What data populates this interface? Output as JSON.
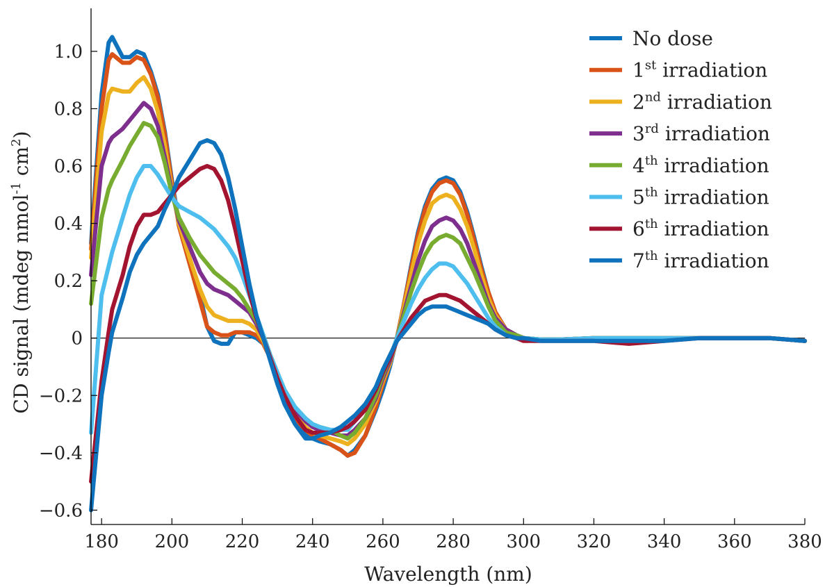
{
  "chart_data": {
    "type": "line",
    "title": "",
    "xlabel": "Wavelength (nm)",
    "ylabel": "CD signal (mdeg nmol-1 cm2)",
    "ylabel_parts": {
      "main": "CD signal (mdeg nmol",
      "sup1": "-1",
      "mid": " cm",
      "sup2": "2",
      "end": ")"
    },
    "xlim": [
      177,
      380
    ],
    "ylim": [
      -0.65,
      1.15
    ],
    "x_ticks": [
      180,
      200,
      220,
      240,
      260,
      280,
      300,
      320,
      340,
      360,
      380
    ],
    "x_tick_labels": [
      "180",
      "200",
      "220",
      "240",
      "260",
      "280",
      "300",
      "320",
      "340",
      "360",
      "380"
    ],
    "y_ticks": [
      -0.6,
      -0.4,
      -0.2,
      0,
      0.2,
      0.4,
      0.6,
      0.8,
      1.0
    ],
    "y_tick_labels": [
      "−0.6",
      "−0.4",
      "−0.2",
      "0",
      "0.2",
      "0.4",
      "0.6",
      "0.8",
      "1.0"
    ],
    "grid": false,
    "zero_line": true,
    "legend_position": "top-right",
    "x": [
      177,
      180,
      182,
      183,
      186,
      188,
      190,
      192,
      194,
      196,
      198,
      200,
      202,
      205,
      208,
      210,
      212,
      214,
      216,
      218,
      220,
      222,
      224,
      226,
      228,
      230,
      232,
      235,
      238,
      240,
      242,
      245,
      248,
      250,
      252,
      255,
      258,
      260,
      262,
      264,
      266,
      268,
      270,
      272,
      274,
      276,
      278,
      280,
      282,
      284,
      286,
      288,
      290,
      292,
      295,
      298,
      300,
      305,
      310,
      320,
      330,
      340,
      350,
      360,
      370,
      380
    ],
    "series": [
      {
        "name": "No dose",
        "label_main": "No dose",
        "label_sup": "",
        "label_rest": "",
        "color": "#0e72bd",
        "values": [
          0.33,
          0.85,
          1.03,
          1.05,
          0.98,
          0.98,
          1.0,
          0.99,
          0.93,
          0.85,
          0.72,
          0.55,
          0.4,
          0.27,
          0.15,
          0.04,
          -0.01,
          -0.02,
          -0.02,
          0.02,
          0.02,
          0.01,
          0.0,
          -0.02,
          -0.07,
          -0.14,
          -0.21,
          -0.28,
          -0.33,
          -0.35,
          -0.36,
          -0.37,
          -0.39,
          -0.41,
          -0.39,
          -0.34,
          -0.25,
          -0.18,
          -0.1,
          0.0,
          0.12,
          0.25,
          0.37,
          0.46,
          0.52,
          0.55,
          0.56,
          0.55,
          0.51,
          0.44,
          0.35,
          0.25,
          0.16,
          0.09,
          0.03,
          0.01,
          0.0,
          -0.005,
          -0.005,
          0.0,
          0.0,
          0.0,
          0.0,
          0.0,
          0.0,
          -0.01
        ]
      },
      {
        "name": "1st irradiation",
        "label_main": "1",
        "label_sup": "st",
        "label_rest": " irradiation",
        "color": "#d95319",
        "values": [
          0.31,
          0.8,
          0.97,
          0.99,
          0.96,
          0.96,
          0.98,
          0.97,
          0.92,
          0.84,
          0.71,
          0.54,
          0.39,
          0.26,
          0.13,
          0.04,
          0.02,
          0.01,
          0.01,
          0.02,
          0.02,
          0.02,
          0.01,
          -0.02,
          -0.07,
          -0.14,
          -0.21,
          -0.28,
          -0.32,
          -0.34,
          -0.35,
          -0.37,
          -0.39,
          -0.41,
          -0.4,
          -0.34,
          -0.24,
          -0.16,
          -0.09,
          0.0,
          0.12,
          0.24,
          0.36,
          0.45,
          0.51,
          0.54,
          0.55,
          0.54,
          0.5,
          0.43,
          0.34,
          0.24,
          0.16,
          0.09,
          0.03,
          0.01,
          0.0,
          -0.005,
          -0.005,
          0.0,
          0.0,
          0.0,
          0.0,
          0.0,
          0.0,
          -0.01
        ]
      },
      {
        "name": "2nd irradiation",
        "label_main": "2",
        "label_sup": "nd",
        "label_rest": " irradiation",
        "color": "#edb120",
        "values": [
          0.28,
          0.72,
          0.85,
          0.87,
          0.86,
          0.86,
          0.89,
          0.91,
          0.87,
          0.79,
          0.67,
          0.52,
          0.4,
          0.28,
          0.17,
          0.11,
          0.08,
          0.07,
          0.06,
          0.06,
          0.06,
          0.05,
          0.03,
          -0.01,
          -0.07,
          -0.14,
          -0.2,
          -0.27,
          -0.31,
          -0.33,
          -0.34,
          -0.35,
          -0.36,
          -0.37,
          -0.35,
          -0.3,
          -0.22,
          -0.15,
          -0.09,
          0.0,
          0.11,
          0.22,
          0.33,
          0.41,
          0.47,
          0.49,
          0.5,
          0.49,
          0.45,
          0.39,
          0.31,
          0.22,
          0.14,
          0.08,
          0.03,
          0.01,
          0.0,
          -0.005,
          -0.005,
          0.0,
          0.0,
          0.0,
          0.0,
          0.0,
          0.0,
          -0.01
        ]
      },
      {
        "name": "3rd irradiation",
        "label_main": "3",
        "label_sup": "rd",
        "label_rest": " irradiation",
        "color": "#7e2f8e",
        "values": [
          0.22,
          0.6,
          0.68,
          0.7,
          0.73,
          0.76,
          0.79,
          0.82,
          0.8,
          0.74,
          0.63,
          0.51,
          0.41,
          0.32,
          0.23,
          0.19,
          0.17,
          0.16,
          0.15,
          0.13,
          0.11,
          0.09,
          0.05,
          0.0,
          -0.07,
          -0.13,
          -0.19,
          -0.25,
          -0.29,
          -0.31,
          -0.32,
          -0.33,
          -0.34,
          -0.34,
          -0.32,
          -0.28,
          -0.21,
          -0.14,
          -0.08,
          0.0,
          0.09,
          0.18,
          0.27,
          0.34,
          0.39,
          0.41,
          0.42,
          0.41,
          0.38,
          0.33,
          0.26,
          0.19,
          0.12,
          0.07,
          0.03,
          0.01,
          0.0,
          -0.005,
          -0.005,
          0.0,
          0.0,
          0.0,
          0.0,
          0.0,
          0.0,
          -0.01
        ]
      },
      {
        "name": "4th irradiation",
        "label_main": "4",
        "label_sup": "th",
        "label_rest": " irradiation",
        "color": "#77ac30",
        "values": [
          0.12,
          0.42,
          0.52,
          0.55,
          0.62,
          0.67,
          0.71,
          0.75,
          0.74,
          0.7,
          0.61,
          0.5,
          0.42,
          0.35,
          0.29,
          0.26,
          0.23,
          0.21,
          0.19,
          0.17,
          0.14,
          0.1,
          0.06,
          0.01,
          -0.06,
          -0.12,
          -0.18,
          -0.24,
          -0.28,
          -0.3,
          -0.31,
          -0.32,
          -0.34,
          -0.35,
          -0.33,
          -0.28,
          -0.2,
          -0.13,
          -0.07,
          0.0,
          0.08,
          0.16,
          0.23,
          0.29,
          0.33,
          0.35,
          0.36,
          0.35,
          0.33,
          0.28,
          0.23,
          0.17,
          0.11,
          0.06,
          0.02,
          0.01,
          0.0,
          -0.005,
          -0.005,
          0.0,
          0.0,
          0.0,
          0.0,
          0.0,
          0.0,
          -0.01
        ]
      },
      {
        "name": "5th irradiation",
        "label_main": "5",
        "label_sup": "th",
        "label_rest": " irradiation",
        "color": "#4dbeee",
        "values": [
          -0.33,
          0.15,
          0.25,
          0.3,
          0.42,
          0.5,
          0.56,
          0.6,
          0.6,
          0.57,
          0.53,
          0.49,
          0.46,
          0.44,
          0.42,
          0.4,
          0.38,
          0.35,
          0.32,
          0.28,
          0.22,
          0.15,
          0.08,
          0.01,
          -0.06,
          -0.12,
          -0.18,
          -0.24,
          -0.28,
          -0.3,
          -0.31,
          -0.32,
          -0.32,
          -0.32,
          -0.29,
          -0.25,
          -0.18,
          -0.12,
          -0.07,
          0.0,
          0.06,
          0.12,
          0.17,
          0.21,
          0.24,
          0.26,
          0.26,
          0.25,
          0.22,
          0.19,
          0.15,
          0.11,
          0.07,
          0.04,
          0.01,
          0.0,
          0.0,
          -0.005,
          -0.005,
          0.0,
          0.0,
          0.0,
          0.0,
          0.0,
          0.0,
          -0.01
        ]
      },
      {
        "name": "6th irradiation",
        "label_main": "6",
        "label_sup": "th",
        "label_rest": " irradiation",
        "color": "#a2142f",
        "values": [
          -0.5,
          -0.15,
          0.02,
          0.1,
          0.22,
          0.32,
          0.39,
          0.43,
          0.43,
          0.44,
          0.47,
          0.5,
          0.53,
          0.56,
          0.59,
          0.6,
          0.59,
          0.55,
          0.48,
          0.38,
          0.27,
          0.16,
          0.07,
          0.0,
          -0.07,
          -0.14,
          -0.2,
          -0.27,
          -0.32,
          -0.33,
          -0.33,
          -0.33,
          -0.32,
          -0.31,
          -0.29,
          -0.25,
          -0.18,
          -0.12,
          -0.07,
          -0.01,
          0.03,
          0.07,
          0.1,
          0.13,
          0.14,
          0.15,
          0.15,
          0.14,
          0.13,
          0.11,
          0.09,
          0.07,
          0.05,
          0.03,
          0.01,
          0.0,
          -0.01,
          -0.01,
          -0.01,
          -0.01,
          -0.02,
          -0.01,
          0.0,
          0.0,
          0.0,
          -0.01
        ]
      },
      {
        "name": "7th irradiation",
        "label_main": "7",
        "label_sup": "th",
        "label_rest": " irradiation",
        "color": "#0e72bd",
        "values": [
          -0.6,
          -0.2,
          -0.05,
          0.02,
          0.14,
          0.23,
          0.29,
          0.33,
          0.36,
          0.39,
          0.45,
          0.5,
          0.56,
          0.62,
          0.68,
          0.69,
          0.68,
          0.64,
          0.56,
          0.45,
          0.32,
          0.19,
          0.08,
          0.0,
          -0.08,
          -0.16,
          -0.23,
          -0.3,
          -0.35,
          -0.35,
          -0.34,
          -0.33,
          -0.31,
          -0.29,
          -0.27,
          -0.23,
          -0.17,
          -0.11,
          -0.06,
          -0.01,
          0.02,
          0.05,
          0.08,
          0.1,
          0.11,
          0.11,
          0.11,
          0.1,
          0.09,
          0.08,
          0.07,
          0.06,
          0.05,
          0.03,
          0.01,
          0.0,
          0.0,
          -0.01,
          -0.01,
          -0.01,
          -0.01,
          -0.01,
          0.0,
          0.0,
          0.0,
          -0.01
        ]
      }
    ]
  }
}
